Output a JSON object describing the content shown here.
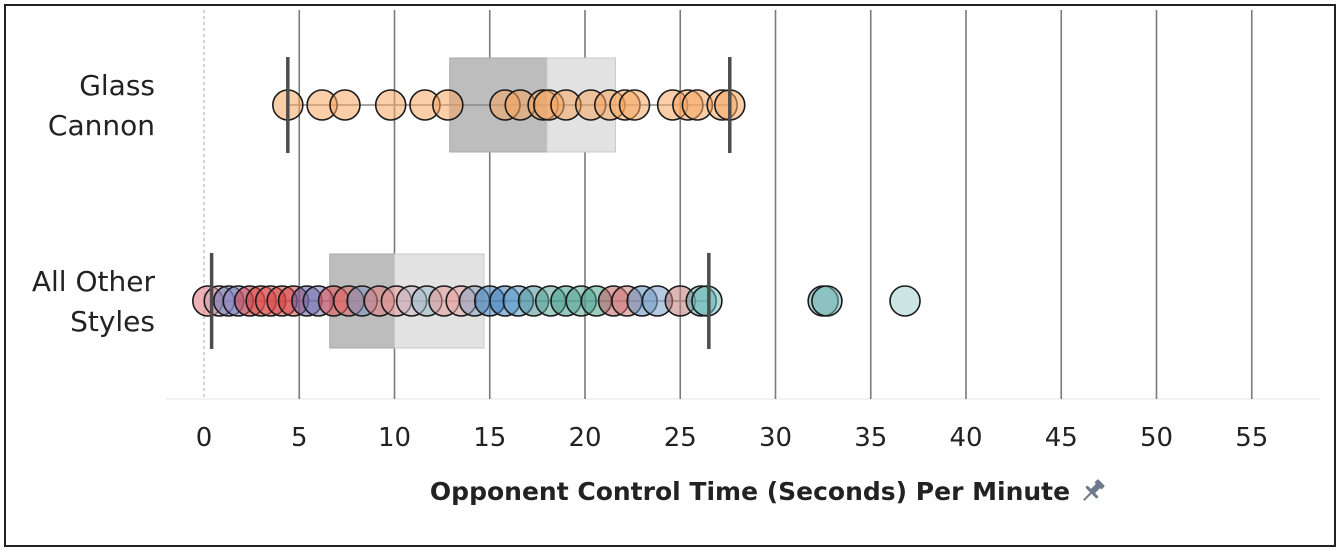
{
  "chart_data": {
    "type": "box-scatter",
    "xlabel": "Opponent Control Time (Seconds) Per Minute",
    "xlim": [
      -2,
      60
    ],
    "xticks": [
      0,
      5,
      10,
      15,
      20,
      25,
      30,
      35,
      40,
      45,
      50,
      55
    ],
    "grid": "vertical",
    "pin_icon": "pin-icon",
    "categories": [
      {
        "label_lines": [
          "Glass",
          "Cannon"
        ],
        "whisker_low": 4.4,
        "q1": 12.9,
        "median": 18.0,
        "q3": 21.6,
        "whisker_high": 27.6,
        "points": [
          {
            "x": 4.4,
            "color": "#f6a560"
          },
          {
            "x": 6.2,
            "color": "#f6a560"
          },
          {
            "x": 7.4,
            "color": "#f6a560"
          },
          {
            "x": 9.8,
            "color": "#f6a560"
          },
          {
            "x": 11.6,
            "color": "#f6a560"
          },
          {
            "x": 12.8,
            "color": "#f6a560"
          },
          {
            "x": 15.8,
            "color": "#f6a560"
          },
          {
            "x": 16.6,
            "color": "#f6a560"
          },
          {
            "x": 17.8,
            "color": "#f6a560"
          },
          {
            "x": 18.1,
            "color": "#f6a560"
          },
          {
            "x": 19.0,
            "color": "#f6a560"
          },
          {
            "x": 20.3,
            "color": "#f6a560"
          },
          {
            "x": 21.3,
            "color": "#f6a560"
          },
          {
            "x": 22.1,
            "color": "#f6a560"
          },
          {
            "x": 22.6,
            "color": "#f6a560"
          },
          {
            "x": 24.6,
            "color": "#f6a560"
          },
          {
            "x": 25.4,
            "color": "#f6a560"
          },
          {
            "x": 25.9,
            "color": "#f6a560"
          },
          {
            "x": 27.2,
            "color": "#f6a560"
          },
          {
            "x": 27.6,
            "color": "#f6a560"
          }
        ]
      },
      {
        "label_lines": [
          "All Other",
          "Styles"
        ],
        "whisker_low": 0.4,
        "q1": 6.6,
        "median": 10.0,
        "q3": 14.7,
        "whisker_high": 26.5,
        "points": [
          {
            "x": 0.2,
            "color": "#e0707a"
          },
          {
            "x": 0.8,
            "color": "#c9a0b4"
          },
          {
            "x": 1.3,
            "color": "#6b78b2"
          },
          {
            "x": 1.8,
            "color": "#8a84c0"
          },
          {
            "x": 2.4,
            "color": "#d64545"
          },
          {
            "x": 3.0,
            "color": "#d64545"
          },
          {
            "x": 3.5,
            "color": "#e05353"
          },
          {
            "x": 4.1,
            "color": "#d64545"
          },
          {
            "x": 4.7,
            "color": "#d64545"
          },
          {
            "x": 5.4,
            "color": "#5b5fa8"
          },
          {
            "x": 6.0,
            "color": "#7e73b0"
          },
          {
            "x": 6.8,
            "color": "#e05353"
          },
          {
            "x": 7.6,
            "color": "#e06a6a"
          },
          {
            "x": 8.3,
            "color": "#7e8fb8"
          },
          {
            "x": 9.2,
            "color": "#e07e7e"
          },
          {
            "x": 10.1,
            "color": "#e49a9a"
          },
          {
            "x": 10.9,
            "color": "#c7b8c8"
          },
          {
            "x": 11.7,
            "color": "#9fbcc8"
          },
          {
            "x": 12.6,
            "color": "#e49a9a"
          },
          {
            "x": 13.5,
            "color": "#e8a8a8"
          },
          {
            "x": 14.2,
            "color": "#8a9fc0"
          },
          {
            "x": 15.0,
            "color": "#3f7fba"
          },
          {
            "x": 15.8,
            "color": "#3f7fba"
          },
          {
            "x": 16.5,
            "color": "#5b9bc8"
          },
          {
            "x": 17.3,
            "color": "#4a9098"
          },
          {
            "x": 18.2,
            "color": "#5ba896"
          },
          {
            "x": 19.0,
            "color": "#3f9a8a"
          },
          {
            "x": 19.8,
            "color": "#5ba896"
          },
          {
            "x": 20.6,
            "color": "#4aa08c"
          },
          {
            "x": 21.5,
            "color": "#c06060"
          },
          {
            "x": 22.2,
            "color": "#d07a7a"
          },
          {
            "x": 23.0,
            "color": "#6090c0"
          },
          {
            "x": 23.8,
            "color": "#7aa0c8"
          },
          {
            "x": 25.0,
            "color": "#c07878"
          },
          {
            "x": 26.1,
            "color": "#56a8a8"
          },
          {
            "x": 26.4,
            "color": "#6fbcbc"
          },
          {
            "x": 32.5,
            "color": "#5ba8a8"
          },
          {
            "x": 32.7,
            "color": "#78b8b8"
          },
          {
            "x": 36.8,
            "color": "#9fd0cc"
          }
        ]
      }
    ]
  }
}
